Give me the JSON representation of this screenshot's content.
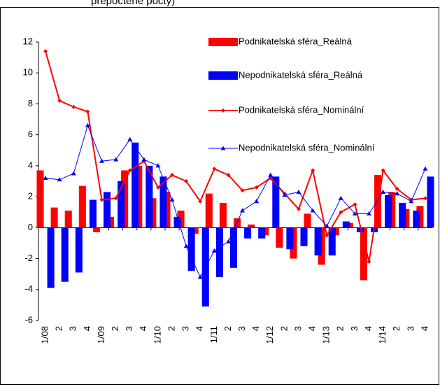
{
  "chart_data": {
    "type": "bar-line",
    "title": "přepočtené počty)",
    "categories": [
      "1/08",
      "2",
      "3",
      "4",
      "1/09",
      "2",
      "3",
      "4",
      "1/10",
      "2",
      "3",
      "4",
      "1/11",
      "2",
      "3",
      "4",
      "1/12",
      "2",
      "3",
      "4",
      "1/13",
      "2",
      "3",
      "4",
      "1/14",
      "2",
      "3",
      "4"
    ],
    "series": [
      {
        "name": "Podnikatelská sféra_Reálná",
        "kind": "bar",
        "color": "#ff0000",
        "values": [
          3.7,
          1.3,
          1.1,
          2.7,
          -0.3,
          0.7,
          3.7,
          4.0,
          1.9,
          2.3,
          1.1,
          -0.4,
          2.2,
          1.6,
          0.6,
          0.2,
          -0.5,
          -1.3,
          -2.0,
          0.9,
          -2.4,
          -0.5,
          0.3,
          -3.4,
          3.4,
          2.3,
          1.2,
          1.4
        ]
      },
      {
        "name": "Nepodnikatelská sféra_Reálná",
        "kind": "bar",
        "color": "#0000ff",
        "values": [
          -3.9,
          -3.5,
          -2.9,
          1.8,
          2.3,
          3.0,
          5.5,
          4.0,
          3.3,
          0.7,
          -2.8,
          -5.1,
          -3.2,
          -2.6,
          -0.7,
          -0.7,
          3.3,
          -1.4,
          -1.2,
          -1.8,
          -1.8,
          0.4,
          -0.3,
          -0.3,
          2.1,
          1.6,
          1.1,
          3.3
        ]
      },
      {
        "name": "Podnikatelská sféra_Nominální",
        "kind": "line",
        "marker": "diamond",
        "color": "#ff0000",
        "values": [
          11.4,
          8.2,
          7.8,
          7.5,
          1.8,
          1.9,
          3.7,
          4.3,
          2.6,
          3.4,
          3.0,
          1.7,
          3.8,
          3.4,
          2.4,
          2.6,
          3.2,
          2.2,
          1.2,
          3.7,
          -0.5,
          1.0,
          1.5,
          -2.2,
          3.7,
          2.5,
          1.8,
          1.9
        ]
      },
      {
        "name": "Nepodnikatelská sféra_Nominální",
        "kind": "line",
        "marker": "triangle",
        "color": "#0000ff",
        "values": [
          3.2,
          3.1,
          3.5,
          6.6,
          4.3,
          4.4,
          5.7,
          4.4,
          4.0,
          1.8,
          -1.2,
          -3.2,
          -1.5,
          -0.9,
          1.1,
          1.7,
          3.4,
          2.1,
          2.3,
          1.1,
          0.1,
          1.9,
          0.9,
          0.9,
          2.3,
          2.2,
          1.7,
          3.8
        ]
      }
    ],
    "ylim": [
      -6,
      12
    ],
    "yticks": [
      -6,
      -4,
      -2,
      0,
      2,
      4,
      6,
      8,
      10,
      12
    ],
    "legend": "upper right"
  }
}
